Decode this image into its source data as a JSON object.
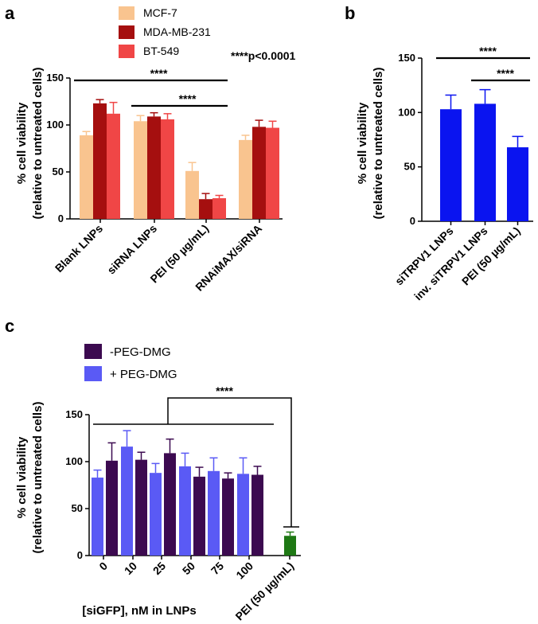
{
  "chart_data": [
    {
      "panel": "a",
      "type": "bar",
      "ylabel_line1": "% cell viability",
      "ylabel_line2": "(relative to untreated cells)",
      "ylim": [
        0,
        150
      ],
      "yticks": [
        0,
        50,
        100,
        150
      ],
      "categories": [
        "Blank LNPs",
        "siRNA LNPs",
        "PEI (50 µg/mL)",
        "RNAiMAX/siRNA"
      ],
      "series": [
        {
          "name": "MCF-7",
          "color": "#F9C48F",
          "values": [
            89,
            104,
            51,
            84
          ],
          "errors": [
            4,
            6,
            9,
            5
          ]
        },
        {
          "name": "MDA-MB-231",
          "color": "#A50F0F",
          "values": [
            123,
            109,
            21,
            98
          ],
          "errors": [
            4,
            4,
            6,
            7
          ]
        },
        {
          "name": "BT-549",
          "color": "#F04646",
          "values": [
            112,
            106,
            22,
            97
          ],
          "errors": [
            12,
            6,
            3,
            7
          ]
        }
      ],
      "annotation": "****p<0.0001",
      "significance": [
        {
          "label": "****",
          "from": 0,
          "to": 2
        },
        {
          "label": "****",
          "from": 1,
          "to": 2
        }
      ]
    },
    {
      "panel": "b",
      "type": "bar",
      "ylabel_line1": "% cell viability",
      "ylabel_line2": "(relative to untreated cells)",
      "ylim": [
        0,
        150
      ],
      "yticks": [
        0,
        50,
        100,
        150
      ],
      "categories": [
        "siTRPV1 LNPs",
        "inv. siTRPV1 LNPs",
        "PEI (50 µg/mL)"
      ],
      "color": "#0A14F0",
      "values": [
        103,
        108,
        68
      ],
      "errors": [
        13,
        13,
        10
      ],
      "significance": [
        {
          "label": "****",
          "from": 0,
          "to": 2
        },
        {
          "label": "****",
          "from": 1,
          "to": 2
        }
      ]
    },
    {
      "panel": "c",
      "type": "bar",
      "ylabel_line1": "% cell viability",
      "ylabel_line2": "(relative to untreated cells)",
      "xlabel": "[siGFP], nM in LNPs",
      "ylim": [
        0,
        150
      ],
      "yticks": [
        0,
        50,
        100,
        150
      ],
      "categories": [
        "0",
        "10",
        "25",
        "50",
        "75",
        "100",
        "PEI (50 µg/mL)"
      ],
      "series": [
        {
          "name": "+ PEG-DMG",
          "color": "#5A5AF5",
          "values": [
            83,
            116,
            88,
            95,
            90,
            87,
            null
          ],
          "errors": [
            8,
            17,
            10,
            14,
            14,
            17,
            null
          ]
        },
        {
          "name": "-PEG-DMG",
          "color": "#3C0A50",
          "values": [
            101,
            102,
            109,
            84,
            82,
            86,
            null
          ],
          "errors": [
            19,
            8,
            15,
            10,
            6,
            9,
            null
          ]
        }
      ],
      "pei": {
        "value": 21,
        "error": 4,
        "color": "#1E7814"
      },
      "significance": [
        {
          "label": "****",
          "from": "0-100",
          "to": "PEI"
        }
      ]
    }
  ]
}
